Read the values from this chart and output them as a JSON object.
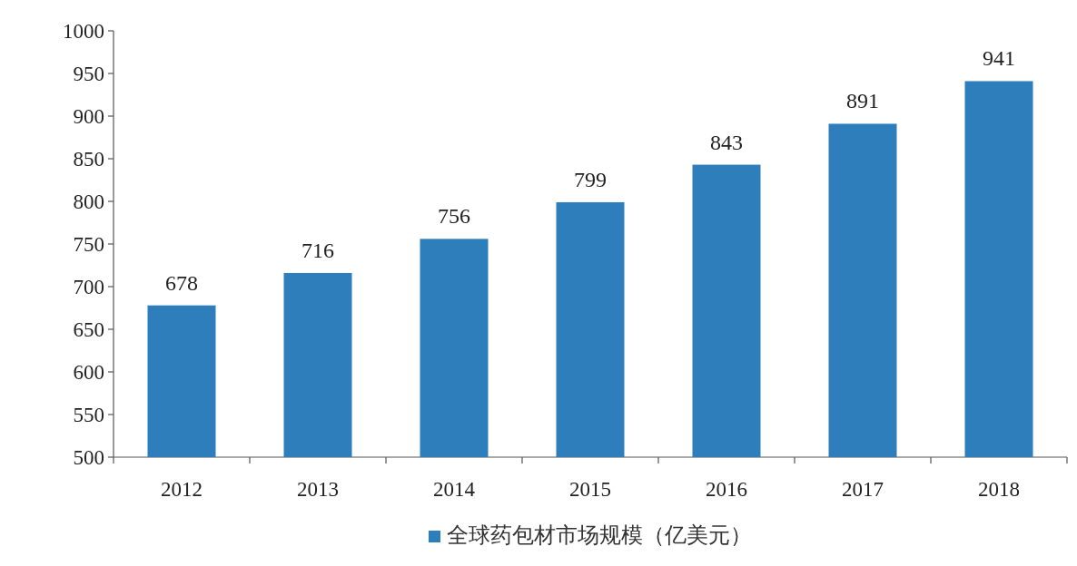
{
  "chart_data": {
    "type": "bar",
    "categories": [
      "2012",
      "2013",
      "2014",
      "2015",
      "2016",
      "2017",
      "2018"
    ],
    "series": [
      {
        "name": "全球药包材市场规模（亿美元）",
        "color": "#2e7ebb",
        "values": [
          678,
          716,
          756,
          799,
          843,
          891,
          941
        ]
      }
    ],
    "ylim": [
      500,
      1000
    ],
    "yticks": [
      500,
      550,
      600,
      650,
      700,
      750,
      800,
      850,
      900,
      950,
      1000
    ],
    "data_labels": true,
    "legend": "bottom"
  }
}
